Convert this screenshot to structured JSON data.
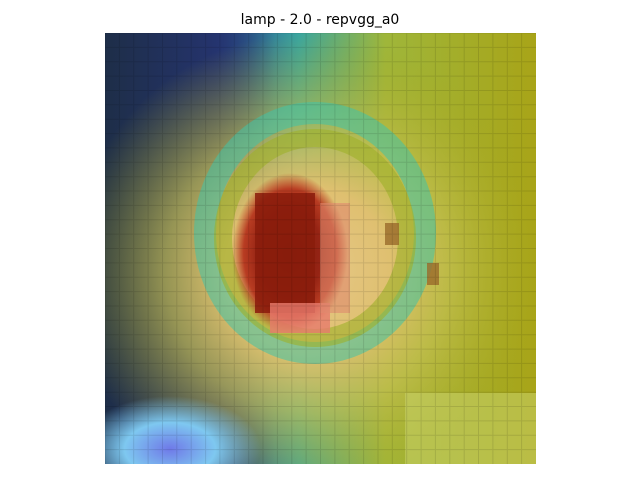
{
  "figure": {
    "title": "lamp - 2.0 - repvgg_a0"
  }
}
